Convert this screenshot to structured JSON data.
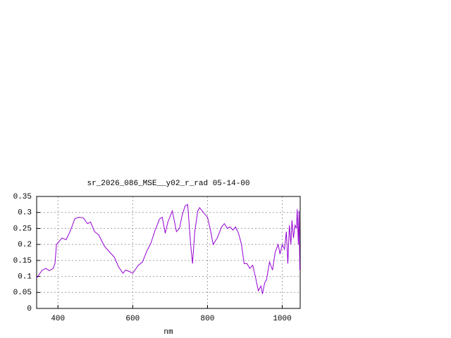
{
  "chart_data": {
    "type": "line",
    "title": "sr_2026_086_MSE__y02_r_rad 05-14-00",
    "x_label": "nm",
    "xlim": [
      343,
      1048
    ],
    "ylim": [
      0,
      0.35
    ],
    "xticks": [
      400,
      600,
      800,
      1000
    ],
    "yticks": [
      0,
      0.05,
      0.1,
      0.15,
      0.2,
      0.25,
      0.3,
      0.35
    ],
    "grid": true,
    "series": [
      {
        "color": "#9400d3",
        "x": [
          343,
          358,
          368,
          377,
          387,
          392,
          396,
          411,
          422,
          434,
          445,
          456,
          468,
          479,
          487,
          498,
          509,
          524,
          539,
          551,
          562,
          574,
          581,
          592,
          600,
          615,
          626,
          638,
          649,
          660,
          672,
          679,
          687,
          694,
          706,
          717,
          725,
          732,
          740,
          747,
          755,
          760,
          766,
          774,
          779,
          789,
          800,
          808,
          815,
          826,
          838,
          845,
          853,
          860,
          868,
          875,
          883,
          891,
          898,
          906,
          913,
          921,
          928,
          936,
          943,
          947,
          953,
          958,
          966,
          974,
          981,
          989,
          994,
          1000,
          1006,
          1011,
          1015,
          1019,
          1023,
          1026,
          1030,
          1034,
          1038,
          1040,
          1043,
          1045,
          1047
        ],
        "values": [
          0.095,
          0.12,
          0.125,
          0.118,
          0.125,
          0.14,
          0.2,
          0.22,
          0.215,
          0.245,
          0.28,
          0.285,
          0.283,
          0.265,
          0.27,
          0.24,
          0.23,
          0.195,
          0.175,
          0.16,
          0.13,
          0.11,
          0.12,
          0.115,
          0.11,
          0.135,
          0.145,
          0.18,
          0.205,
          0.245,
          0.28,
          0.285,
          0.235,
          0.27,
          0.305,
          0.24,
          0.25,
          0.29,
          0.32,
          0.325,
          0.2,
          0.14,
          0.24,
          0.305,
          0.315,
          0.3,
          0.285,
          0.245,
          0.2,
          0.22,
          0.255,
          0.265,
          0.25,
          0.255,
          0.245,
          0.255,
          0.235,
          0.2,
          0.14,
          0.14,
          0.125,
          0.135,
          0.1,
          0.055,
          0.07,
          0.045,
          0.08,
          0.09,
          0.145,
          0.12,
          0.175,
          0.2,
          0.17,
          0.2,
          0.185,
          0.24,
          0.14,
          0.26,
          0.2,
          0.275,
          0.22,
          0.26,
          0.25,
          0.31,
          0.2,
          0.305,
          0.12
        ]
      }
    ]
  }
}
